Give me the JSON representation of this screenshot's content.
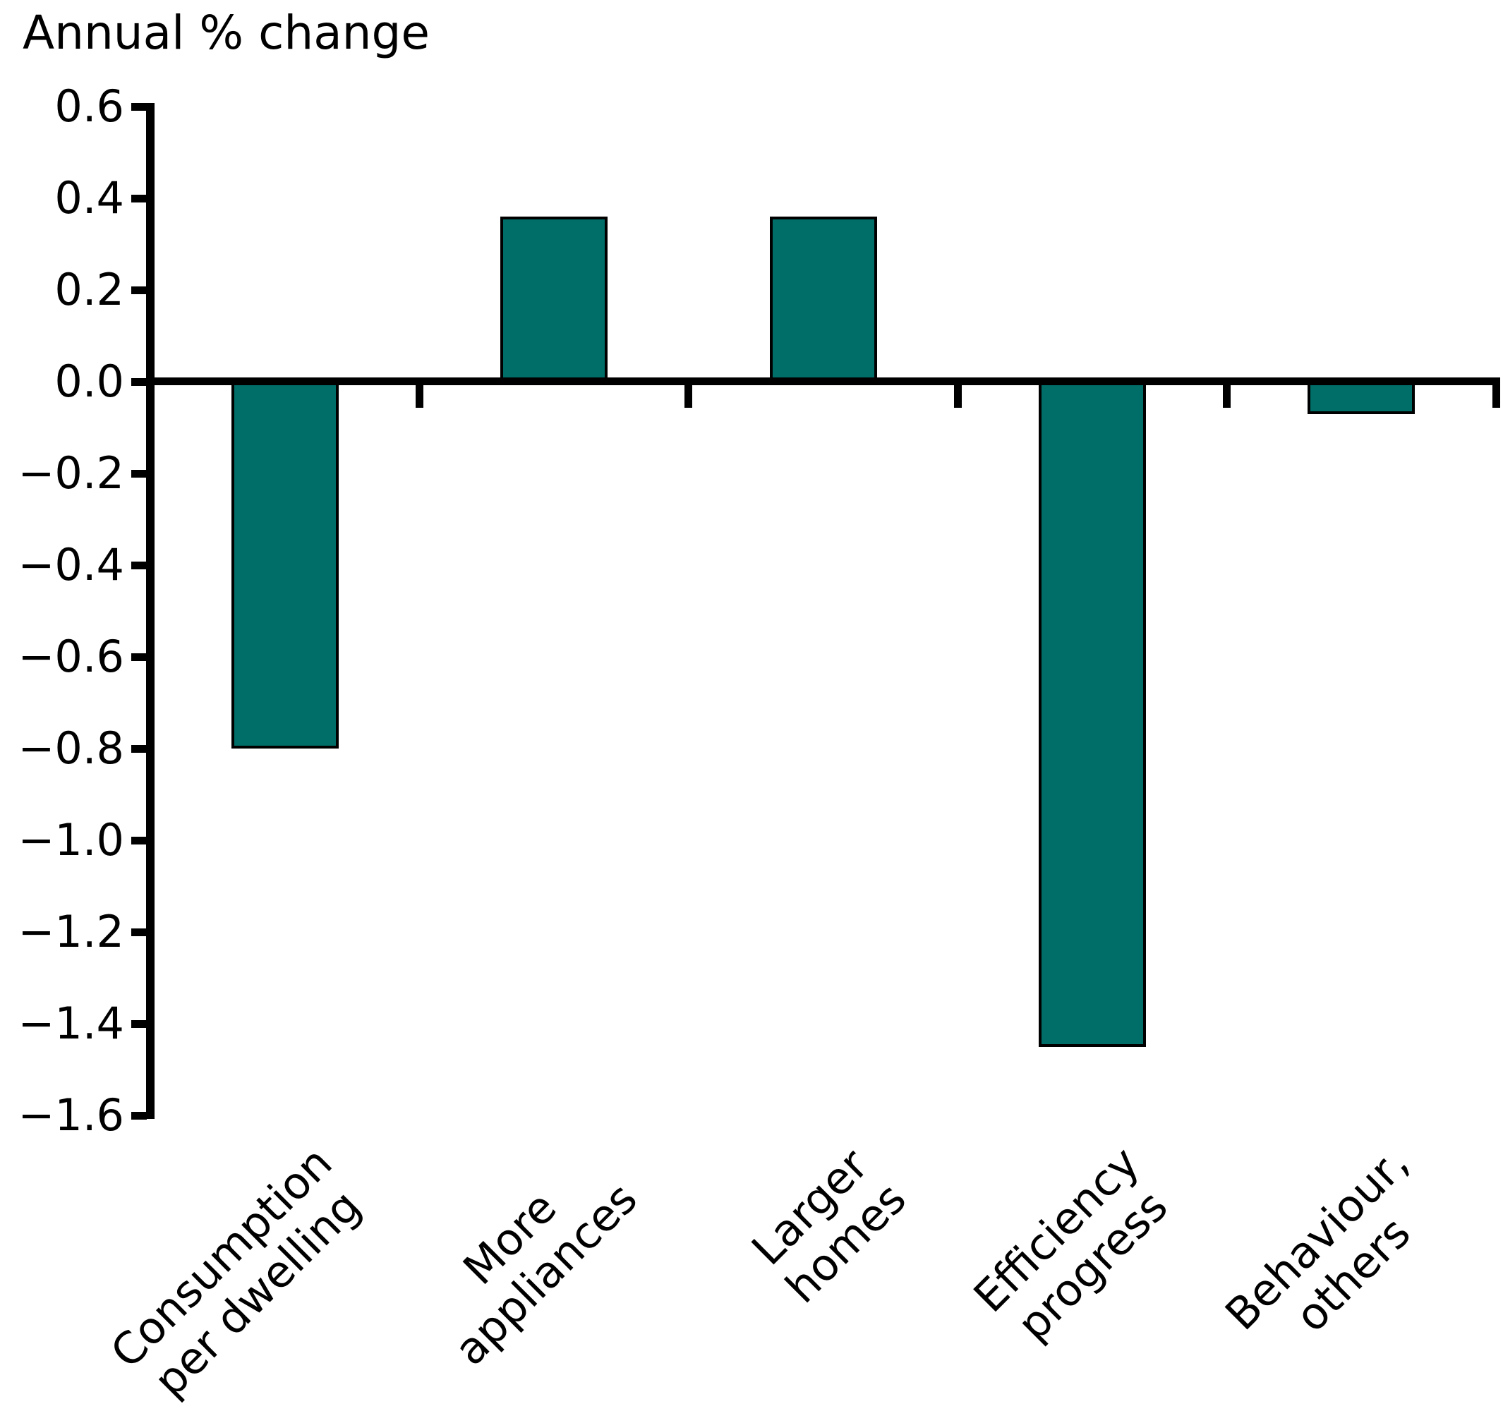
{
  "chart_data": {
    "type": "bar",
    "title": "Annual % change",
    "categories": [
      [
        "Consumption",
        "per dwelling"
      ],
      [
        "More",
        "appliances"
      ],
      [
        "Larger",
        "homes"
      ],
      [
        "Efficiency",
        "progress"
      ],
      [
        "Behaviour,",
        "others"
      ]
    ],
    "values": [
      -0.8,
      0.36,
      0.36,
      -1.45,
      -0.07
    ],
    "ylim": [
      -1.6,
      0.6
    ],
    "y_tick_step": 0.2,
    "y_ticks": [
      {
        "label": "0.6",
        "value": 0.6
      },
      {
        "label": "0.4",
        "value": 0.4
      },
      {
        "label": "0.2",
        "value": 0.2
      },
      {
        "label": "0.0",
        "value": 0.0
      },
      {
        "label": "−0.2",
        "value": -0.2
      },
      {
        "label": "−0.4",
        "value": -0.4
      },
      {
        "label": "−0.6",
        "value": -0.6
      },
      {
        "label": "−0.8",
        "value": -0.8
      },
      {
        "label": "−1.0",
        "value": -1.0
      },
      {
        "label": "−1.2",
        "value": -1.2
      },
      {
        "label": "−1.4",
        "value": -1.4
      },
      {
        "label": "−1.6",
        "value": -1.6
      }
    ],
    "xlabel": "",
    "ylabel": "Annual % change",
    "legend": "none",
    "grid": false,
    "bar_color": "#006E68",
    "bar_border_color": "#000000",
    "axis_color": "#000000",
    "text_color": "#000000",
    "background_color": "#ffffff"
  }
}
